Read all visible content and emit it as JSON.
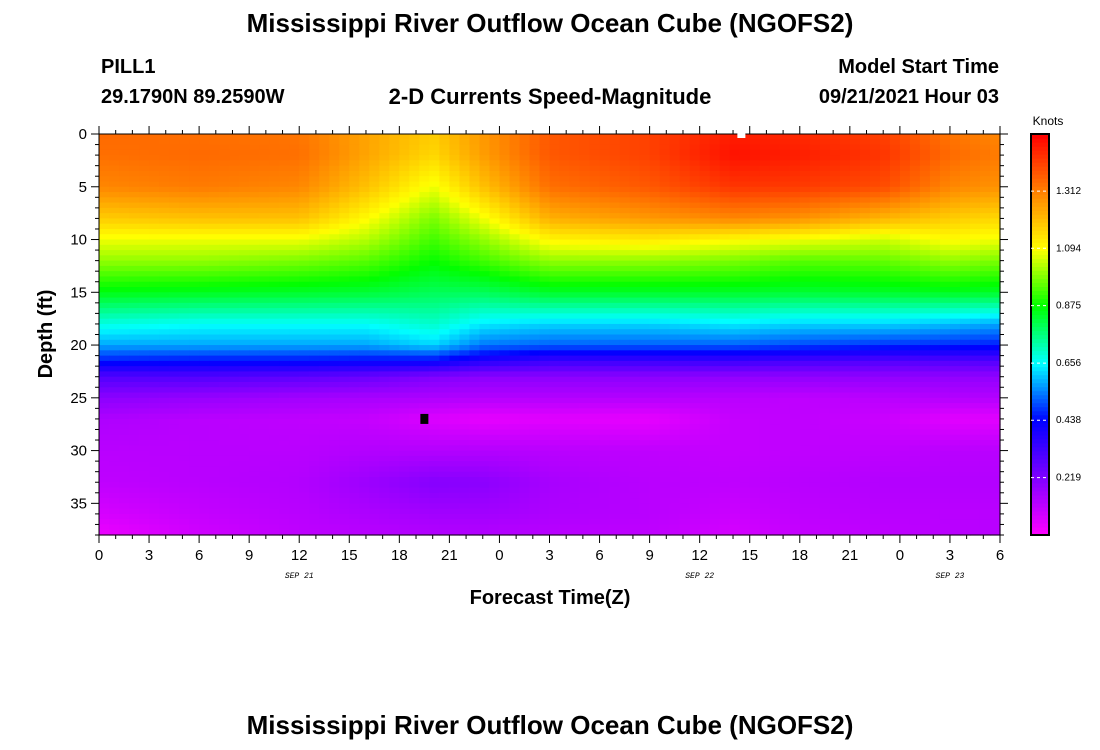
{
  "header": {
    "title": "Mississippi River Outflow Ocean Cube (NGOFS2)",
    "station": "PILL1",
    "coords": "29.1790N  89.2590W",
    "subtitle": "2-D Currents Speed-Magnitude",
    "start_label": "Model Start Time",
    "start_value": "09/21/2021 Hour 03"
  },
  "footer": {
    "title": "Mississippi River Outflow Ocean Cube (NGOFS2)"
  },
  "chart_data": {
    "type": "heatmap",
    "xlabel": "Forecast Time(Z)",
    "ylabel": "Depth (ft)",
    "x_ticks": [
      "0",
      "3",
      "6",
      "9",
      "12",
      "15",
      "18",
      "21",
      "0",
      "3",
      "6",
      "9",
      "12",
      "15",
      "18",
      "21",
      "0",
      "3",
      "6"
    ],
    "x_range_hours": [
      0,
      54
    ],
    "date_labels": [
      {
        "label": "SEP 21",
        "hour": 12
      },
      {
        "label": "SEP 22",
        "hour": 36
      },
      {
        "label": "SEP 23",
        "hour": 51
      }
    ],
    "y_ticks": [
      0,
      5,
      10,
      15,
      20,
      25,
      30,
      35
    ],
    "ylim": [
      0,
      38
    ],
    "y_inverted": true,
    "colorbar": {
      "unit": "Knots",
      "ticks": [
        0.219,
        0.438,
        0.656,
        0.875,
        1.094,
        1.312
      ],
      "range": [
        0.0,
        1.53
      ],
      "colors": [
        "#ff00ff",
        "#8000ff",
        "#0000ff",
        "#00ffff",
        "#00ff00",
        "#ffff00",
        "#ff8000",
        "#ff0000"
      ]
    },
    "speed_by_depth": {
      "depths_ft": [
        0,
        2,
        5,
        8,
        10,
        12,
        15,
        18,
        20,
        21.5,
        23,
        25,
        27,
        30,
        33,
        36,
        38
      ],
      "hours": [
        0,
        6,
        12,
        16,
        20,
        23,
        27,
        33,
        38,
        42,
        47,
        51,
        54
      ],
      "values": [
        [
          1.35,
          1.34,
          1.33,
          1.25,
          1.18,
          1.27,
          1.38,
          1.42,
          1.48,
          1.46,
          1.42,
          1.33,
          1.3
        ],
        [
          1.34,
          1.35,
          1.34,
          1.25,
          1.16,
          1.26,
          1.38,
          1.42,
          1.5,
          1.48,
          1.44,
          1.35,
          1.32
        ],
        [
          1.3,
          1.32,
          1.3,
          1.2,
          1.08,
          1.2,
          1.34,
          1.38,
          1.44,
          1.43,
          1.4,
          1.3,
          1.28
        ],
        [
          1.18,
          1.2,
          1.2,
          1.1,
          0.98,
          1.08,
          1.23,
          1.27,
          1.3,
          1.28,
          1.22,
          1.18,
          1.16
        ],
        [
          1.08,
          1.08,
          1.08,
          1.03,
          0.93,
          1.0,
          1.11,
          1.13,
          1.1,
          1.08,
          1.05,
          1.1,
          1.08
        ],
        [
          1.0,
          1.0,
          0.98,
          0.95,
          0.88,
          0.93,
          1.0,
          1.0,
          0.98,
          0.95,
          0.96,
          1.0,
          0.98
        ],
        [
          0.86,
          0.85,
          0.84,
          0.83,
          0.8,
          0.8,
          0.84,
          0.84,
          0.84,
          0.83,
          0.84,
          0.85,
          0.84
        ],
        [
          0.68,
          0.66,
          0.66,
          0.66,
          0.7,
          0.64,
          0.62,
          0.62,
          0.64,
          0.62,
          0.62,
          0.6,
          0.58
        ],
        [
          0.58,
          0.58,
          0.58,
          0.58,
          0.62,
          0.54,
          0.52,
          0.52,
          0.52,
          0.5,
          0.48,
          0.47,
          0.46
        ],
        [
          0.46,
          0.45,
          0.45,
          0.44,
          0.44,
          0.38,
          0.34,
          0.34,
          0.34,
          0.32,
          0.3,
          0.3,
          0.3
        ],
        [
          0.3,
          0.3,
          0.28,
          0.26,
          0.22,
          0.2,
          0.2,
          0.2,
          0.19,
          0.19,
          0.19,
          0.19,
          0.19
        ],
        [
          0.2,
          0.18,
          0.16,
          0.15,
          0.14,
          0.13,
          0.13,
          0.13,
          0.12,
          0.11,
          0.12,
          0.13,
          0.13
        ],
        [
          0.14,
          0.12,
          0.11,
          0.1,
          0.06,
          0.04,
          0.05,
          0.04,
          0.1,
          0.11,
          0.09,
          0.05,
          0.05
        ],
        [
          0.12,
          0.12,
          0.12,
          0.13,
          0.13,
          0.13,
          0.12,
          0.11,
          0.1,
          0.11,
          0.11,
          0.12,
          0.12
        ],
        [
          0.11,
          0.12,
          0.13,
          0.17,
          0.21,
          0.2,
          0.15,
          0.12,
          0.11,
          0.12,
          0.13,
          0.13,
          0.13
        ],
        [
          0.07,
          0.1,
          0.12,
          0.14,
          0.16,
          0.16,
          0.14,
          0.12,
          0.09,
          0.11,
          0.12,
          0.12,
          0.12
        ],
        [
          0.03,
          0.08,
          0.11,
          0.12,
          0.13,
          0.13,
          0.12,
          0.11,
          0.07,
          0.1,
          0.11,
          0.12,
          0.12
        ]
      ]
    }
  }
}
